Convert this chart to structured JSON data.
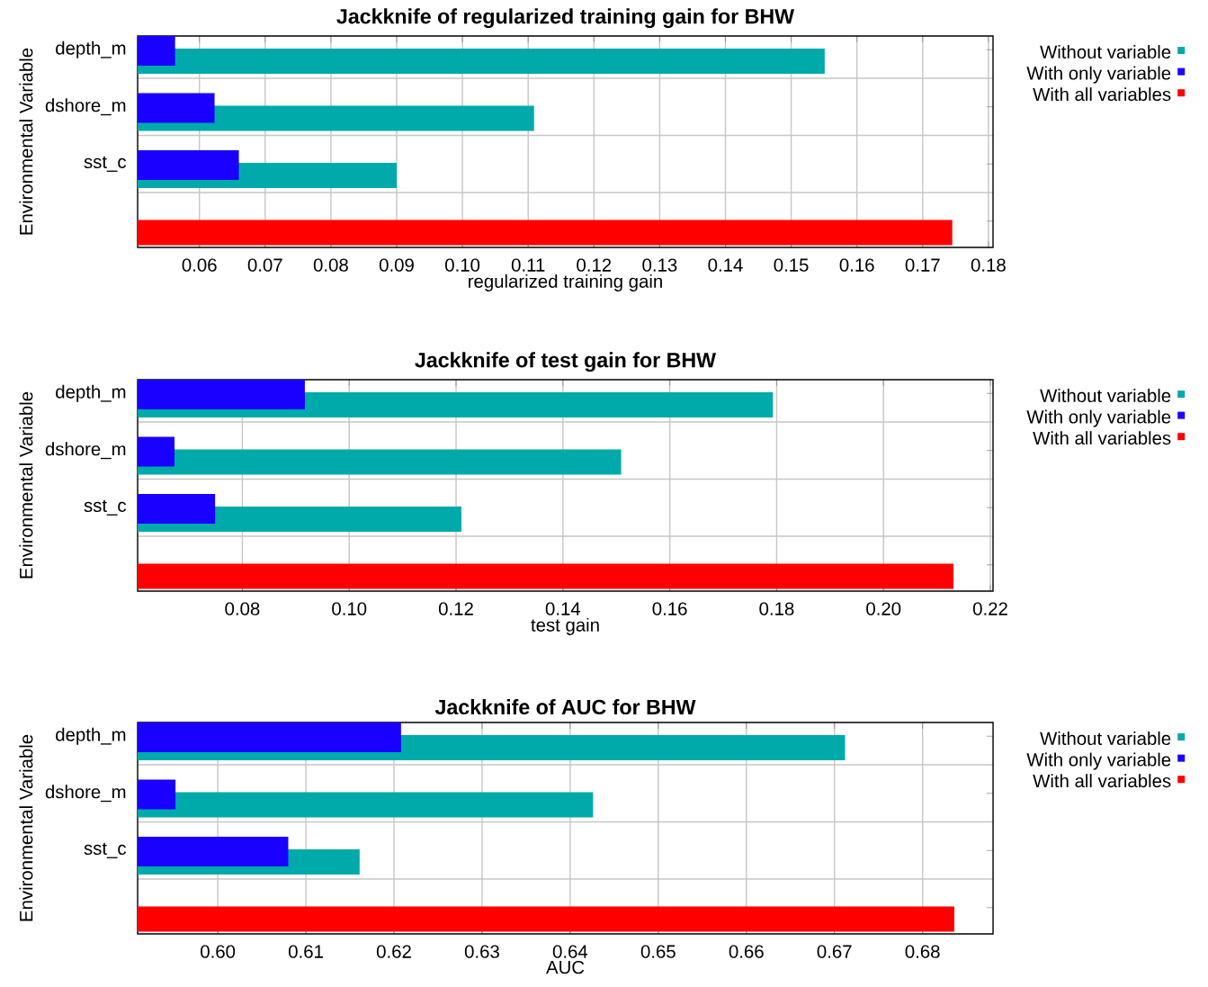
{
  "chart_data": [
    {
      "type": "bar",
      "orientation": "horizontal",
      "title": "Jackknife of regularized training gain for BHW",
      "xlabel": "regularized training gain",
      "ylabel": "Environmental Variable",
      "categories": [
        "depth_m",
        "dshore_m",
        "sst_c",
        null
      ],
      "series": [
        {
          "name": "Without variable",
          "color": "#00aaaa",
          "values": [
            0.1551,
            0.1109,
            0.09,
            null
          ]
        },
        {
          "name": "With only variable",
          "color": "#1a00ff",
          "values": [
            0.0563,
            0.0623,
            0.066,
            null
          ]
        },
        {
          "name": "With all variables",
          "color": "#ff0000",
          "values": [
            null,
            null,
            null,
            0.1745
          ]
        }
      ],
      "xlim": [
        0.0506,
        0.1807
      ],
      "xticks": [
        {
          "value": 0.06,
          "label": "0.06"
        },
        {
          "value": 0.07,
          "label": "0.07"
        },
        {
          "value": 0.08,
          "label": "0.08"
        },
        {
          "value": 0.09,
          "label": "0.09"
        },
        {
          "value": 0.1,
          "label": "0.10"
        },
        {
          "value": 0.11,
          "label": "0.11"
        },
        {
          "value": 0.12,
          "label": "0.12"
        },
        {
          "value": 0.13,
          "label": "0.13"
        },
        {
          "value": 0.14,
          "label": "0.14"
        },
        {
          "value": 0.15,
          "label": "0.15"
        },
        {
          "value": 0.16,
          "label": "0.16"
        },
        {
          "value": 0.17,
          "label": "0.17"
        },
        {
          "value": 0.18,
          "label": "0.18"
        }
      ],
      "grid": true,
      "legend": "top right"
    },
    {
      "type": "bar",
      "orientation": "horizontal",
      "title": "Jackknife of test gain for BHW",
      "xlabel": "test gain",
      "ylabel": "Environmental Variable",
      "categories": [
        "depth_m",
        "dshore_m",
        "sst_c",
        null
      ],
      "series": [
        {
          "name": "Without variable",
          "color": "#00aaaa",
          "values": [
            0.1793,
            0.1509,
            0.121,
            null
          ]
        },
        {
          "name": "With only variable",
          "color": "#1a00ff",
          "values": [
            0.0917,
            0.0673,
            0.0749,
            null
          ]
        },
        {
          "name": "With all variables",
          "color": "#ff0000",
          "values": [
            null,
            null,
            null,
            0.2131
          ]
        }
      ],
      "xlim": [
        0.0604,
        0.2205
      ],
      "xticks": [
        {
          "value": 0.08,
          "label": "0.08"
        },
        {
          "value": 0.1,
          "label": "0.10"
        },
        {
          "value": 0.12,
          "label": "0.12"
        },
        {
          "value": 0.14,
          "label": "0.14"
        },
        {
          "value": 0.16,
          "label": "0.16"
        },
        {
          "value": 0.18,
          "label": "0.18"
        },
        {
          "value": 0.2,
          "label": "0.20"
        },
        {
          "value": 0.22,
          "label": "0.22"
        }
      ],
      "grid": true,
      "legend": "top right"
    },
    {
      "type": "bar",
      "orientation": "horizontal",
      "title": "Jackknife of AUC for BHW",
      "xlabel": "AUC",
      "ylabel": "Environmental Variable",
      "categories": [
        "depth_m",
        "dshore_m",
        "sst_c",
        null
      ],
      "series": [
        {
          "name": "Without variable",
          "color": "#00aaaa",
          "values": [
            0.6712,
            0.6426,
            0.6161,
            null
          ]
        },
        {
          "name": "With only variable",
          "color": "#1a00ff",
          "values": [
            0.6208,
            0.5952,
            0.608,
            null
          ]
        },
        {
          "name": "With all variables",
          "color": "#ff0000",
          "values": [
            null,
            null,
            null,
            0.6836
          ]
        }
      ],
      "xlim": [
        0.5909,
        0.688
      ],
      "xticks": [
        {
          "value": 0.6,
          "label": "0.60"
        },
        {
          "value": 0.61,
          "label": "0.61"
        },
        {
          "value": 0.62,
          "label": "0.62"
        },
        {
          "value": 0.63,
          "label": "0.63"
        },
        {
          "value": 0.64,
          "label": "0.64"
        },
        {
          "value": 0.65,
          "label": "0.65"
        },
        {
          "value": 0.66,
          "label": "0.66"
        },
        {
          "value": 0.67,
          "label": "0.67"
        },
        {
          "value": 0.68,
          "label": "0.68"
        }
      ],
      "grid": true,
      "legend": "top right"
    }
  ]
}
